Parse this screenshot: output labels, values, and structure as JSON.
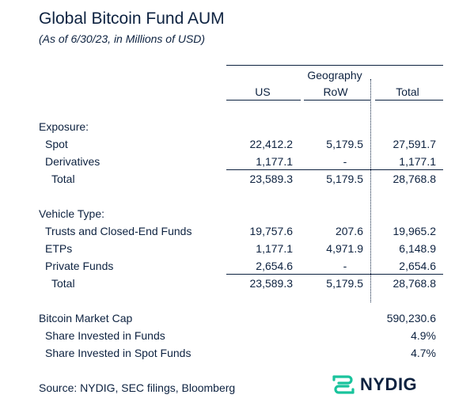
{
  "title": "Global Bitcoin Fund AUM",
  "subtitle": "(As of 6/30/23, in Millions of USD)",
  "columns": {
    "group_label": "Geography",
    "us": "US",
    "row": "RoW",
    "total": "Total"
  },
  "exposure": {
    "heading": "Exposure:",
    "spot": {
      "label": "Spot",
      "us": "22,412.2",
      "row": "5,179.5",
      "total": "27,591.7"
    },
    "derivatives": {
      "label": "Derivatives",
      "us": "1,177.1",
      "row": "-",
      "total": "1,177.1"
    },
    "total": {
      "label": "Total",
      "us": "23,589.3",
      "row": "5,179.5",
      "total": "28,768.8"
    }
  },
  "vehicle": {
    "heading": "Vehicle Type:",
    "trusts": {
      "label": "Trusts and Closed-End Funds",
      "us": "19,757.6",
      "row": "207.6",
      "total": "19,965.2"
    },
    "etps": {
      "label": "ETPs",
      "us": "1,177.1",
      "row": "4,971.9",
      "total": "6,148.9"
    },
    "private": {
      "label": "Private Funds",
      "us": "2,654.6",
      "row": "-",
      "total": "2,654.6"
    },
    "total": {
      "label": "Total",
      "us": "23,589.3",
      "row": "5,179.5",
      "total": "28,768.8"
    }
  },
  "market": {
    "cap": {
      "label": "Bitcoin Market Cap",
      "total": "590,230.6"
    },
    "share_funds": {
      "label": "Share Invested in Funds",
      "total": "4.9%"
    },
    "share_spot": {
      "label": "Share Invested in Spot Funds",
      "total": "4.7%"
    }
  },
  "source": "Source: NYDIG, SEC filings, Bloomberg",
  "logo": {
    "text": "NYDIG",
    "icon": "nydig-logo-icon",
    "icon_color": "#19c39c"
  }
}
